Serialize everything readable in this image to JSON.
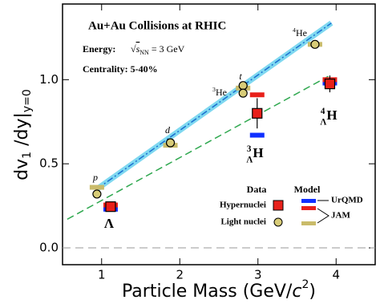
{
  "chart_data": {
    "type": "scatter",
    "title": "Au+Au Collisions at RHIC",
    "energy": {
      "label": "Energy:",
      "root": "√",
      "s": "s",
      "sub": "NN",
      "rest": " = 3 GeV"
    },
    "centrality": "Centrality: 5-40%",
    "xlabel": {
      "main": "Particle Mass (GeV/",
      "c": "c",
      "sup": "2",
      "close": ")"
    },
    "ylabel": {
      "main": "dv",
      "sub1": "1",
      "mid": " /dy|",
      "sub2": "y=0"
    },
    "xlim": [
      0.5,
      4.5
    ],
    "ylim": [
      -0.1,
      1.45
    ],
    "xticks": [
      1,
      2,
      3,
      4
    ],
    "yticks": [
      {
        "value": 0,
        "label": "0.0"
      },
      {
        "value": 0.5,
        "label": "0.5"
      },
      {
        "value": 1,
        "label": "1.0"
      }
    ],
    "zero_line": 0,
    "legend_headers": {
      "data": "Data",
      "model": "Model"
    },
    "data_series": [
      {
        "name": "Hypernuclei",
        "color": "#e8201a",
        "marker": "square",
        "x": [
          1.115,
          2.99,
          3.92
        ],
        "values": [
          0.245,
          0.8,
          0.975
        ],
        "errors": [
          0.01,
          0.09,
          0.05
        ]
      },
      {
        "name": "Light nuclei",
        "color": "#d8cc78",
        "marker": "circle",
        "x": [
          0.94,
          1.88,
          2.81,
          2.81,
          3.73
        ],
        "values": [
          0.32,
          0.625,
          0.965,
          0.92,
          1.21
        ]
      }
    ],
    "models": [
      {
        "name": "UrQMD",
        "sets": [
          {
            "color": "#1030ff",
            "x": [
              1.115,
              2.99,
              3.92
            ],
            "values": [
              0.23,
              0.67,
              0.98
            ]
          }
        ]
      },
      {
        "name": "JAM",
        "sets": [
          {
            "color": "#e8201a",
            "x": [
              1.115,
              2.99,
              3.92
            ],
            "values": [
              0.255,
              0.91,
              1.0
            ]
          },
          {
            "color": "#c9bb6a",
            "x": [
              0.94,
              1.88,
              2.81,
              3.73
            ],
            "values": [
              0.36,
              0.61,
              0.95,
              1.21
            ]
          }
        ]
      }
    ],
    "fits": [
      {
        "color": "#1a6fd0",
        "band": "#7fd8f0",
        "style": "dashdot",
        "x": [
          0.94,
          3.94
        ],
        "values": [
          0.35,
          1.337
        ]
      },
      {
        "color": "#2fa84f",
        "style": "dashed",
        "x": [
          0.56,
          3.9
        ],
        "values": [
          0.17,
          1.02
        ]
      }
    ],
    "annotations": [
      {
        "main": "p"
      },
      {
        "main": "d"
      },
      {
        "main": "t"
      },
      {
        "sup": "3",
        "main": "He"
      },
      {
        "sup": "4",
        "main": "He"
      },
      {
        "main": "Λ"
      },
      {
        "sup": "3",
        "sub": "Λ",
        "main": "H"
      },
      {
        "sup": "4",
        "sub": "Λ",
        "main": "H"
      }
    ]
  }
}
